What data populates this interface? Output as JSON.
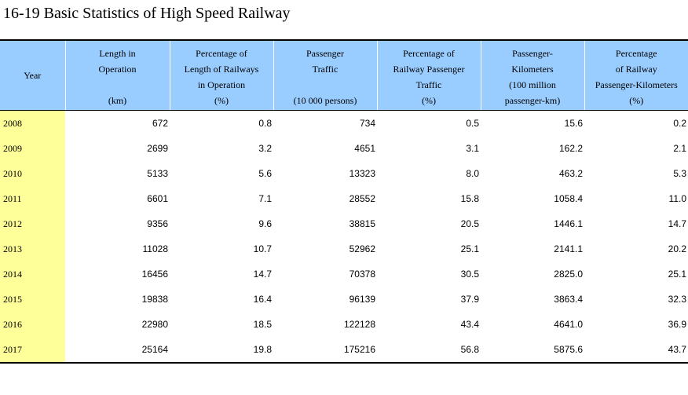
{
  "title": "16-19  Basic Statistics of High Speed Railway",
  "header": {
    "year": "Year",
    "col1": {
      "lines": [
        "Length in",
        "Operation"
      ],
      "unit": "(km)"
    },
    "col2": {
      "lines": [
        "Percentage of",
        "Length of Railways",
        "in Operation"
      ],
      "unit": "(%)"
    },
    "col3": {
      "lines": [
        "Passenger",
        "Traffic"
      ],
      "unit": "(10 000 persons)"
    },
    "col4": {
      "lines": [
        "Percentage of",
        "Railway Passenger",
        "Traffic"
      ],
      "unit": "(%)"
    },
    "col5": {
      "lines": [
        "Passenger-",
        "Kilometers",
        "(100 million"
      ],
      "unit": "passenger-km)"
    },
    "col6": {
      "lines": [
        "Percentage",
        "of Railway",
        "Passenger-Kilometers"
      ],
      "unit": "(%)"
    }
  },
  "rows": [
    [
      "2008",
      "672",
      "0.8",
      "734",
      "0.5",
      "15.6",
      "0.2"
    ],
    [
      "2009",
      "2699",
      "3.2",
      "4651",
      "3.1",
      "162.2",
      "2.1"
    ],
    [
      "2010",
      "5133",
      "5.6",
      "13323",
      "8.0",
      "463.2",
      "5.3"
    ],
    [
      "2011",
      "6601",
      "7.1",
      "28552",
      "15.8",
      "1058.4",
      "11.0"
    ],
    [
      "2012",
      "9356",
      "9.6",
      "38815",
      "20.5",
      "1446.1",
      "14.7"
    ],
    [
      "2013",
      "11028",
      "10.7",
      "52962",
      "25.1",
      "2141.1",
      "20.2"
    ],
    [
      "2014",
      "16456",
      "14.7",
      "70378",
      "30.5",
      "2825.0",
      "25.1"
    ],
    [
      "2015",
      "19838",
      "16.4",
      "96139",
      "37.9",
      "3863.4",
      "32.3"
    ],
    [
      "2016",
      "22980",
      "18.5",
      "122128",
      "43.4",
      "4641.0",
      "36.9"
    ],
    [
      "2017",
      "25164",
      "19.8",
      "175216",
      "56.8",
      "5875.6",
      "43.7"
    ]
  ],
  "colors": {
    "header_bg": "#99ccff",
    "year_bg": "#ffff99"
  }
}
